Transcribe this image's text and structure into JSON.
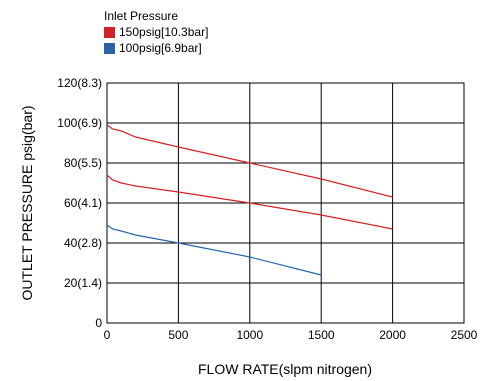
{
  "chart_data": {
    "type": "line",
    "legend_title": "Inlet Pressure",
    "legend_placement": "top-left",
    "xlabel": "FLOW RATE(slpm nitrogen)",
    "ylabel": "OUTLET PRESSURE psig(bar)",
    "xlim": [
      0,
      2500
    ],
    "ylim": [
      0,
      120
    ],
    "xticks": [
      0,
      500,
      1000,
      1500,
      2000,
      2500
    ],
    "xtick_labels": [
      "0",
      "500",
      "1000",
      "1500",
      "2000",
      "2500"
    ],
    "yticks": [
      0,
      20,
      40,
      60,
      80,
      100,
      120
    ],
    "ytick_labels": [
      "0",
      "20(1.4)",
      "40(2.8)",
      "60(4.1)",
      "80(5.5)",
      "100(6.9)",
      "120(8.3)"
    ],
    "grid": true,
    "series": [
      {
        "name": "150psig[10.3bar]",
        "color": "#d42027",
        "curves": [
          {
            "x": [
              0,
              40,
              100,
              200,
              500,
              1000,
              1500,
              2000
            ],
            "y": [
              99,
              97,
              96,
              93,
              88,
              80,
              72,
              63
            ]
          },
          {
            "x": [
              0,
              40,
              100,
              200,
              500,
              1000,
              1500,
              2000
            ],
            "y": [
              74,
              71.5,
              70,
              68.5,
              65.5,
              60,
              54,
              47
            ]
          }
        ]
      },
      {
        "name": "100psig[6.9bar]",
        "color": "#2a64a8",
        "curves": [
          {
            "x": [
              0,
              40,
              100,
              200,
              500,
              1000,
              1500
            ],
            "y": [
              49,
              47,
              46,
              44,
              40,
              33,
              24
            ]
          }
        ]
      }
    ]
  }
}
